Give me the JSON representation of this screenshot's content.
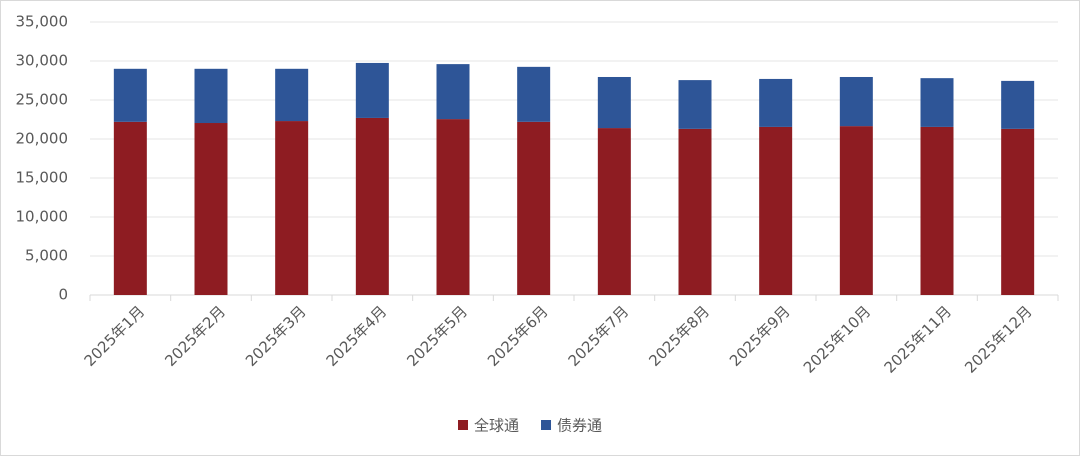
{
  "chart_data": {
    "type": "stacked_bar",
    "categories": [
      "2025年1月",
      "2025年2月",
      "2025年3月",
      "2025年4月",
      "2025年5月",
      "2025年6月",
      "2025年7月",
      "2025年8月",
      "2025年9月",
      "2025年10月",
      "2025年11月",
      "2025年12月"
    ],
    "series": [
      {
        "name": "全球通",
        "color": "#8e1c22",
        "values": [
          22200,
          22050,
          22300,
          22700,
          22550,
          22200,
          21400,
          21300,
          21550,
          21650,
          21550,
          21300
        ]
      },
      {
        "name": "债券通",
        "color": "#2e5597",
        "values": [
          6800,
          6950,
          6700,
          7050,
          7050,
          7050,
          6550,
          6250,
          6150,
          6300,
          6250,
          6150
        ]
      }
    ],
    "ylim": [
      0,
      35000
    ],
    "yticks": [
      0,
      {
        "value": 5000,
        "label": "5,000"
      },
      {
        "value": 10000,
        "label": "10,000"
      },
      {
        "value": 15000,
        "label": "15,000"
      },
      {
        "value": 20000,
        "label": "20,000"
      },
      {
        "value": 25000,
        "label": "25,000"
      },
      {
        "value": 30000,
        "label": "30,000"
      },
      {
        "value": 35000,
        "label": "35,000"
      }
    ],
    "grid": true,
    "legend": "bottom"
  }
}
